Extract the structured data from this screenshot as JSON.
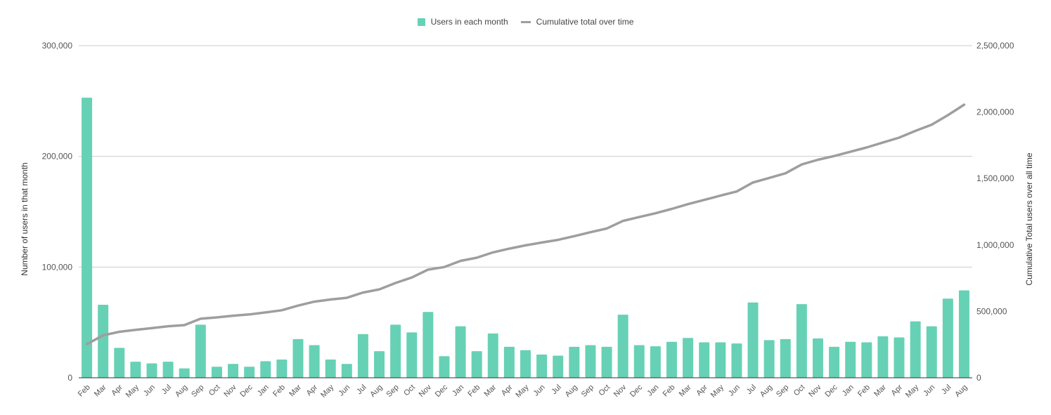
{
  "legend": {
    "bars_label": "Users in each month",
    "line_label": "Cumulative total over time"
  },
  "colors": {
    "bars": "#67d1b5",
    "line": "#9e9e9e",
    "grid": "#cccccc",
    "axis": "#333333"
  },
  "chart_data": {
    "type": "bar+line",
    "categories": [
      "Feb",
      "Mar",
      "Apr",
      "May",
      "Jun",
      "Jul",
      "Aug",
      "Sep",
      "Oct",
      "Nov",
      "Dec",
      "Jan",
      "Feb",
      "Mar",
      "Apr",
      "May",
      "Jun",
      "Jul",
      "Aug",
      "Sep",
      "Oct",
      "Nov",
      "Dec",
      "Jan",
      "Feb",
      "Mar",
      "Apr",
      "May",
      "Jun",
      "Jul",
      "Aug",
      "Sep",
      "Oct",
      "Nov",
      "Dec",
      "Jan",
      "Feb",
      "Mar",
      "Apr",
      "May",
      "Jun",
      "Jul",
      "Aug",
      "Sep",
      "Oct",
      "Nov",
      "Dec",
      "Jan",
      "Feb",
      "Mar",
      "Apr",
      "May",
      "Jun",
      "Jul",
      "Aug"
    ],
    "series": [
      {
        "name": "Users in each month",
        "type": "bar",
        "axis": "left",
        "values": [
          253000,
          66000,
          27000,
          14500,
          13000,
          14500,
          8500,
          48000,
          10000,
          12500,
          10000,
          15000,
          16500,
          35000,
          29500,
          16500,
          12500,
          39500,
          24000,
          48000,
          41000,
          59500,
          19500,
          46500,
          24000,
          40000,
          28000,
          25000,
          21000,
          20000,
          28000,
          29500,
          28000,
          57000,
          29500,
          28500,
          32500,
          36000,
          32000,
          32000,
          31000,
          68000,
          34000,
          35000,
          66500,
          35500,
          28000,
          32500,
          32000,
          37500,
          36500,
          51000,
          46500,
          71500,
          79000
        ]
      },
      {
        "name": "Cumulative total over time",
        "type": "line",
        "axis": "right",
        "values": [
          253000,
          319000,
          346000,
          360500,
          373500,
          388000,
          396500,
          444500,
          454500,
          467000,
          477000,
          492000,
          508500,
          543500,
          573000,
          589500,
          602000,
          641500,
          665500,
          713500,
          754500,
          814000,
          833500,
          880000,
          904000,
          944000,
          972000,
          997000,
          1018000,
          1038000,
          1066000,
          1095500,
          1123500,
          1180500,
          1210000,
          1238500,
          1271000,
          1307000,
          1339000,
          1371000,
          1402000,
          1470000,
          1504000,
          1539000,
          1605500,
          1641000,
          1669000,
          1701500,
          1733500,
          1771000,
          1807500,
          1858500,
          1905000,
          1976500,
          2055500
        ]
      }
    ],
    "y_left": {
      "label": "Number of users in that month",
      "ylim": [
        0,
        300000
      ],
      "ticks": [
        "0",
        "100,000",
        "200,000",
        "300,000"
      ],
      "tick_values": [
        0,
        100000,
        200000,
        300000
      ]
    },
    "y_right": {
      "label": "Cumulative Total users over all time",
      "ylim": [
        0,
        2500000
      ],
      "ticks": [
        "0",
        "500,000",
        "1,000,000",
        "1,500,000",
        "2,000,000",
        "2,500,000"
      ],
      "tick_values": [
        0,
        500000,
        1000000,
        1500000,
        2000000,
        2500000
      ]
    },
    "grid": true,
    "legend_position": "top-center"
  }
}
